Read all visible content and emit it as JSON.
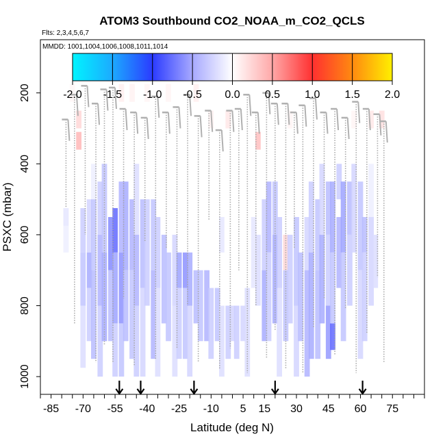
{
  "chart_data": {
    "type": "heatmap",
    "title": "ATOM3 Southbound CO2_NOAA_m_CO2_QCLS",
    "flights_label": "Flts: 2,3,4,5,6,7",
    "mmdd_label": "MMDD: 1001,1004,1006,1008,1011,1014",
    "xlabel": "Latitude (deg N)",
    "ylabel": "PSXC (mbar)",
    "xlim": [
      -90,
      90
    ],
    "ylim": [
      1050,
      50
    ],
    "x_ticks": [
      -85,
      -70,
      -55,
      -40,
      -25,
      -10,
      5,
      15,
      30,
      45,
      60,
      75
    ],
    "y_ticks": [
      200,
      400,
      600,
      800,
      1000
    ],
    "colorbar": {
      "range": [
        -2.0,
        2.0
      ],
      "ticks": [
        "-2.0",
        "-1.5",
        "-1.0",
        "-0.5",
        "0.0",
        "0.5",
        "1.0",
        "1.5",
        "2.0"
      ]
    },
    "arrows_lat": [
      -53,
      -43,
      -18,
      20,
      61
    ],
    "cell_size": {
      "lat": 2.5,
      "p": 25
    },
    "columns": [
      {
        "lat": -78,
        "p0": 525,
        "p1": 575,
        "d": -0.15
      },
      {
        "lat": -78,
        "p0": 575,
        "p1": 650,
        "d": -0.1
      },
      {
        "lat": -75,
        "p0": 175,
        "p1": 225,
        "d": 0.05
      },
      {
        "lat": -72,
        "p0": 250,
        "p1": 300,
        "d": 0.25
      },
      {
        "lat": -72,
        "p0": 310,
        "p1": 360,
        "d": 0.45
      },
      {
        "lat": -70,
        "p0": 525,
        "p1": 650,
        "d": -0.3
      },
      {
        "lat": -70,
        "p0": 650,
        "p1": 800,
        "d": -0.35
      },
      {
        "lat": -70,
        "p0": 800,
        "p1": 975,
        "d": -0.2
      },
      {
        "lat": -67,
        "p0": 500,
        "p1": 650,
        "d": -0.25
      },
      {
        "lat": -67,
        "p0": 650,
        "p1": 750,
        "d": -0.5
      },
      {
        "lat": -67,
        "p0": 750,
        "p1": 900,
        "d": -0.3
      },
      {
        "lat": -65,
        "p0": 400,
        "p1": 500,
        "d": -0.1
      },
      {
        "lat": -65,
        "p0": 500,
        "p1": 700,
        "d": -0.35
      },
      {
        "lat": -65,
        "p0": 700,
        "p1": 950,
        "d": -0.4
      },
      {
        "lat": -62,
        "p0": 450,
        "p1": 600,
        "d": -0.3
      },
      {
        "lat": -62,
        "p0": 600,
        "p1": 800,
        "d": -0.45
      },
      {
        "lat": -62,
        "p0": 800,
        "p1": 1000,
        "d": -0.3
      },
      {
        "lat": -60,
        "p0": 400,
        "p1": 650,
        "d": -0.35
      },
      {
        "lat": -60,
        "p0": 650,
        "p1": 900,
        "d": -0.5
      },
      {
        "lat": -57,
        "p0": 550,
        "p1": 700,
        "d": -0.7
      },
      {
        "lat": -57,
        "p0": 700,
        "p1": 900,
        "d": -0.4
      },
      {
        "lat": -55,
        "p0": 525,
        "p1": 650,
        "d": -0.9
      },
      {
        "lat": -55,
        "p0": 650,
        "p1": 850,
        "d": -0.55
      },
      {
        "lat": -55,
        "p0": 850,
        "p1": 1000,
        "d": -0.3
      },
      {
        "lat": -52,
        "p0": 175,
        "p1": 225,
        "d": 0.1
      },
      {
        "lat": -52,
        "p0": 450,
        "p1": 650,
        "d": -0.45
      },
      {
        "lat": -52,
        "p0": 650,
        "p1": 850,
        "d": -0.65
      },
      {
        "lat": -52,
        "p0": 850,
        "p1": 1000,
        "d": -0.35
      },
      {
        "lat": -50,
        "p0": 450,
        "p1": 700,
        "d": -0.5
      },
      {
        "lat": -50,
        "p0": 700,
        "p1": 900,
        "d": -0.4
      },
      {
        "lat": -47,
        "p0": 175,
        "p1": 225,
        "d": 0.08
      },
      {
        "lat": -47,
        "p0": 500,
        "p1": 700,
        "d": -0.45
      },
      {
        "lat": -47,
        "p0": 700,
        "p1": 950,
        "d": -0.35
      },
      {
        "lat": -45,
        "p0": 400,
        "p1": 600,
        "d": -0.2
      },
      {
        "lat": -45,
        "p0": 600,
        "p1": 800,
        "d": -0.45
      },
      {
        "lat": -45,
        "p0": 800,
        "p1": 1000,
        "d": -0.3
      },
      {
        "lat": -42,
        "p0": 500,
        "p1": 750,
        "d": -0.4
      },
      {
        "lat": -42,
        "p0": 750,
        "p1": 1000,
        "d": -0.25
      },
      {
        "lat": -40,
        "p0": 175,
        "p1": 225,
        "d": 0.06
      },
      {
        "lat": -40,
        "p0": 500,
        "p1": 800,
        "d": -0.3
      },
      {
        "lat": -37,
        "p0": 500,
        "p1": 700,
        "d": -0.35
      },
      {
        "lat": -37,
        "p0": 700,
        "p1": 950,
        "d": -0.45
      },
      {
        "lat": -35,
        "p0": 550,
        "p1": 750,
        "d": -0.3
      },
      {
        "lat": -35,
        "p0": 750,
        "p1": 1000,
        "d": -0.2
      },
      {
        "lat": -32,
        "p0": 600,
        "p1": 850,
        "d": -0.4
      },
      {
        "lat": -30,
        "p0": 175,
        "p1": 225,
        "d": 0.07
      },
      {
        "lat": -30,
        "p0": 650,
        "p1": 900,
        "d": -0.35
      },
      {
        "lat": -27,
        "p0": 600,
        "p1": 800,
        "d": -0.25
      },
      {
        "lat": -27,
        "p0": 800,
        "p1": 1000,
        "d": -0.2
      },
      {
        "lat": -25,
        "p0": 650,
        "p1": 750,
        "d": -0.55
      },
      {
        "lat": -25,
        "p0": 750,
        "p1": 950,
        "d": -0.3
      },
      {
        "lat": -22,
        "p0": 650,
        "p1": 750,
        "d": -0.65
      },
      {
        "lat": -22,
        "p0": 750,
        "p1": 950,
        "d": -0.35
      },
      {
        "lat": -20,
        "p0": 650,
        "p1": 800,
        "d": -0.5
      },
      {
        "lat": -20,
        "p0": 800,
        "p1": 1000,
        "d": -0.25
      },
      {
        "lat": -17,
        "p0": 175,
        "p1": 225,
        "d": 0.1
      },
      {
        "lat": -17,
        "p0": 700,
        "p1": 850,
        "d": -0.4
      },
      {
        "lat": -15,
        "p0": 700,
        "p1": 900,
        "d": -0.35
      },
      {
        "lat": -12,
        "p0": 700,
        "p1": 900,
        "d": -0.45
      },
      {
        "lat": -10,
        "p0": 250,
        "p1": 300,
        "d": 0.08
      },
      {
        "lat": -10,
        "p0": 750,
        "p1": 950,
        "d": -0.3
      },
      {
        "lat": -7,
        "p0": 750,
        "p1": 900,
        "d": -0.35
      },
      {
        "lat": -5,
        "p0": 550,
        "p1": 650,
        "d": -0.15
      },
      {
        "lat": -5,
        "p0": 800,
        "p1": 1000,
        "d": -0.2
      },
      {
        "lat": -2,
        "p0": 250,
        "p1": 300,
        "d": 0.15
      },
      {
        "lat": -2,
        "p0": 800,
        "p1": 950,
        "d": -0.3
      },
      {
        "lat": 0,
        "p0": 800,
        "p1": 900,
        "d": -0.25
      },
      {
        "lat": 2,
        "p0": 800,
        "p1": 950,
        "d": -0.3
      },
      {
        "lat": 5,
        "p0": 800,
        "p1": 900,
        "d": -0.25
      },
      {
        "lat": 7,
        "p0": 750,
        "p1": 1000,
        "d": -0.2
      },
      {
        "lat": 10,
        "p0": 550,
        "p1": 750,
        "d": -0.15
      },
      {
        "lat": 12,
        "p0": 310,
        "p1": 360,
        "d": 0.4
      },
      {
        "lat": 12,
        "p0": 600,
        "p1": 800,
        "d": -0.2
      },
      {
        "lat": 15,
        "p0": 500,
        "p1": 700,
        "d": -0.3
      },
      {
        "lat": 15,
        "p0": 700,
        "p1": 900,
        "d": -0.5
      },
      {
        "lat": 17,
        "p0": 450,
        "p1": 650,
        "d": -0.45
      },
      {
        "lat": 17,
        "p0": 650,
        "p1": 900,
        "d": -0.3
      },
      {
        "lat": 20,
        "p0": 450,
        "p1": 600,
        "d": -0.35
      },
      {
        "lat": 20,
        "p0": 600,
        "p1": 850,
        "d": -0.5
      },
      {
        "lat": 22,
        "p0": 550,
        "p1": 750,
        "d": -0.3
      },
      {
        "lat": 22,
        "p0": 750,
        "p1": 1000,
        "d": -0.2
      },
      {
        "lat": 25,
        "p0": 600,
        "p1": 700,
        "d": 0.25
      },
      {
        "lat": 25,
        "p0": 700,
        "p1": 900,
        "d": -0.35
      },
      {
        "lat": 27,
        "p0": 250,
        "p1": 300,
        "d": 0.07
      },
      {
        "lat": 27,
        "p0": 600,
        "p1": 850,
        "d": -0.3
      },
      {
        "lat": 30,
        "p0": 550,
        "p1": 800,
        "d": -0.35
      },
      {
        "lat": 30,
        "p0": 800,
        "p1": 1000,
        "d": -0.25
      },
      {
        "lat": 32,
        "p0": 650,
        "p1": 900,
        "d": -0.4
      },
      {
        "lat": 35,
        "p0": 550,
        "p1": 700,
        "d": -0.25
      },
      {
        "lat": 35,
        "p0": 700,
        "p1": 1000,
        "d": -0.45
      },
      {
        "lat": 37,
        "p0": 450,
        "p1": 650,
        "d": -0.3
      },
      {
        "lat": 37,
        "p0": 650,
        "p1": 950,
        "d": -0.5
      },
      {
        "lat": 40,
        "p0": 500,
        "p1": 700,
        "d": -0.35
      },
      {
        "lat": 40,
        "p0": 700,
        "p1": 950,
        "d": -0.4
      },
      {
        "lat": 42,
        "p0": 400,
        "p1": 600,
        "d": -0.25
      },
      {
        "lat": 42,
        "p0": 600,
        "p1": 850,
        "d": -0.5
      },
      {
        "lat": 45,
        "p0": 450,
        "p1": 600,
        "d": -0.4
      },
      {
        "lat": 45,
        "p0": 600,
        "p1": 800,
        "d": -0.3
      },
      {
        "lat": 45,
        "p0": 800,
        "p1": 950,
        "d": -0.6
      },
      {
        "lat": 47,
        "p0": 450,
        "p1": 650,
        "d": -0.5
      },
      {
        "lat": 47,
        "p0": 850,
        "p1": 925,
        "d": -0.9
      },
      {
        "lat": 47,
        "p0": 650,
        "p1": 850,
        "d": -0.35
      },
      {
        "lat": 50,
        "p0": 400,
        "p1": 500,
        "d": -0.3
      },
      {
        "lat": 50,
        "p0": 550,
        "p1": 750,
        "d": -0.45
      },
      {
        "lat": 52,
        "p0": 450,
        "p1": 650,
        "d": -0.55
      },
      {
        "lat": 52,
        "p0": 650,
        "p1": 900,
        "d": -0.35
      },
      {
        "lat": 55,
        "p0": 450,
        "p1": 600,
        "d": -0.4
      },
      {
        "lat": 55,
        "p0": 600,
        "p1": 800,
        "d": -0.3
      },
      {
        "lat": 57,
        "p0": 250,
        "p1": 300,
        "d": 0.06
      },
      {
        "lat": 57,
        "p0": 400,
        "p1": 650,
        "d": -0.25
      },
      {
        "lat": 60,
        "p0": 450,
        "p1": 700,
        "d": -0.35
      },
      {
        "lat": 60,
        "p0": 700,
        "p1": 950,
        "d": -0.25
      },
      {
        "lat": 62,
        "p0": 550,
        "p1": 650,
        "d": -0.4
      },
      {
        "lat": 62,
        "p0": 650,
        "p1": 900,
        "d": -0.3
      },
      {
        "lat": 65,
        "p0": 250,
        "p1": 300,
        "d": 0.15
      },
      {
        "lat": 65,
        "p0": 400,
        "p1": 550,
        "d": -0.1
      },
      {
        "lat": 65,
        "p0": 550,
        "p1": 800,
        "d": -0.25
      },
      {
        "lat": 67,
        "p0": 600,
        "p1": 750,
        "d": -0.2
      },
      {
        "lat": 70,
        "p0": 250,
        "p1": 300,
        "d": 0.2
      }
    ],
    "profiles": [
      {
        "lat": -78,
        "p0": 275,
        "p1": 525
      },
      {
        "lat": -74,
        "p0": 205,
        "p1": 850
      },
      {
        "lat": -69,
        "p0": 180,
        "p1": 600
      },
      {
        "lat": -64,
        "p0": 230,
        "p1": 960
      },
      {
        "lat": -60,
        "p0": 190,
        "p1": 910
      },
      {
        "lat": -56,
        "p0": 185,
        "p1": 960
      },
      {
        "lat": -51,
        "p0": 245,
        "p1": 780
      },
      {
        "lat": -46,
        "p0": 255,
        "p1": 970
      },
      {
        "lat": -41,
        "p0": 270,
        "p1": 620
      },
      {
        "lat": -36,
        "p0": 210,
        "p1": 950
      },
      {
        "lat": -31,
        "p0": 255,
        "p1": 640
      },
      {
        "lat": -26,
        "p0": 240,
        "p1": 920
      },
      {
        "lat": -21,
        "p0": 205,
        "p1": 800
      },
      {
        "lat": -16,
        "p0": 265,
        "p1": 960
      },
      {
        "lat": -11,
        "p0": 250,
        "p1": 560
      },
      {
        "lat": -6,
        "p0": 305,
        "p1": 980
      },
      {
        "lat": -1,
        "p0": 250,
        "p1": 920
      },
      {
        "lat": 3,
        "p0": 245,
        "p1": 700
      },
      {
        "lat": 7,
        "p0": 205,
        "p1": 990
      },
      {
        "lat": 11,
        "p0": 255,
        "p1": 800
      },
      {
        "lat": 16,
        "p0": 200,
        "p1": 950
      },
      {
        "lat": 20,
        "p0": 230,
        "p1": 870
      },
      {
        "lat": 25,
        "p0": 230,
        "p1": 980
      },
      {
        "lat": 29,
        "p0": 255,
        "p1": 640
      },
      {
        "lat": 33,
        "p0": 235,
        "p1": 990
      },
      {
        "lat": 38,
        "p0": 215,
        "p1": 860
      },
      {
        "lat": 43,
        "p0": 255,
        "p1": 780
      },
      {
        "lat": 48,
        "p0": 245,
        "p1": 940
      },
      {
        "lat": 53,
        "p0": 270,
        "p1": 810
      },
      {
        "lat": 58,
        "p0": 225,
        "p1": 990
      },
      {
        "lat": 63,
        "p0": 245,
        "p1": 880
      },
      {
        "lat": 68,
        "p0": 260,
        "p1": 720
      },
      {
        "lat": 71,
        "p0": 280,
        "p1": 960
      }
    ]
  }
}
